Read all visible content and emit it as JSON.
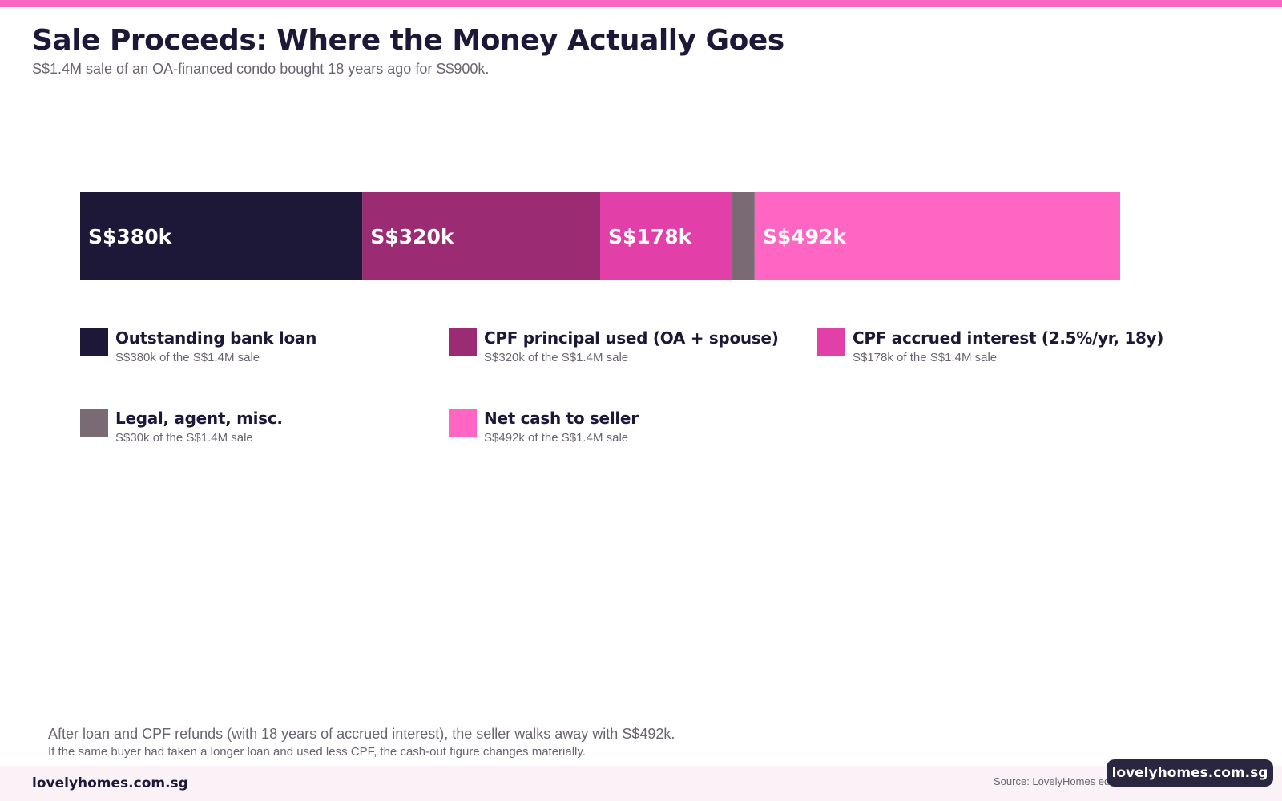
{
  "accent_color": "#ff66c4",
  "header": {
    "title": "Sale Proceeds: Where the Money Actually Goes",
    "subtitle": "S$1.4M sale of an OA-financed condo bought 18 years ago for S$900k."
  },
  "chart_data": {
    "type": "bar",
    "orientation": "horizontal-stacked",
    "title": "Sale Proceeds: Where the Money Actually Goes",
    "subtitle": "S$1.4M sale of an OA-financed condo bought 18 years ago for S$900k.",
    "total": 1400,
    "unit": "S$k",
    "legend_position": "bottom",
    "grid": false,
    "series": [
      {
        "name": "Outstanding bank loan",
        "value": 380,
        "label": "S$380k",
        "color": "#1e1838",
        "sub": "S$380k of the S$1.4M sale"
      },
      {
        "name": "CPF principal used (OA + spouse)",
        "value": 320,
        "label": "S$320k",
        "color": "#9b2c73",
        "sub": "S$320k of the S$1.4M sale"
      },
      {
        "name": "CPF accrued interest (2.5%/yr, 18y)",
        "value": 178,
        "label": "S$178k",
        "color": "#e23fa8",
        "sub": "S$178k of the S$1.4M sale"
      },
      {
        "name": "Legal, agent, misc.",
        "value": 30,
        "label": "",
        "color": "#7a6a73",
        "sub": "S$30k of the S$1.4M sale"
      },
      {
        "name": "Net cash to seller",
        "value": 492,
        "label": "S$492k",
        "color": "#ff66c4",
        "sub": "S$492k of the S$1.4M sale"
      }
    ]
  },
  "notes": {
    "takeaway": "After loan and CPF refunds (with 18 years of accrued interest), the seller walks away with S$492k.",
    "footnote": "If the same buyer had taken a longer loan and used less CPF, the cash-out figure changes materially."
  },
  "footer": {
    "brand": "lovelyhomes.com.sg",
    "source": "Source: LovelyHomes editorial analysis",
    "watermark": "lovelyhomes.com.sg"
  }
}
